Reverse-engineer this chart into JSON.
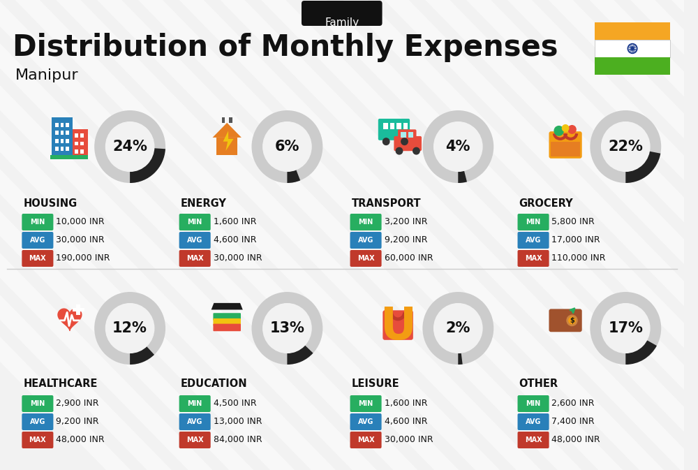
{
  "title": "Distribution of Monthly Expenses",
  "subtitle": "Family",
  "location": "Manipur",
  "background_color": "#f2f2f2",
  "categories": [
    {
      "name": "HOUSING",
      "percent": 24,
      "min": "10,000 INR",
      "avg": "30,000 INR",
      "max": "190,000 INR",
      "row": 0,
      "col": 0
    },
    {
      "name": "ENERGY",
      "percent": 6,
      "min": "1,600 INR",
      "avg": "4,600 INR",
      "max": "30,000 INR",
      "row": 0,
      "col": 1
    },
    {
      "name": "TRANSPORT",
      "percent": 4,
      "min": "3,200 INR",
      "avg": "9,200 INR",
      "max": "60,000 INR",
      "row": 0,
      "col": 2
    },
    {
      "name": "GROCERY",
      "percent": 22,
      "min": "5,800 INR",
      "avg": "17,000 INR",
      "max": "110,000 INR",
      "row": 0,
      "col": 3
    },
    {
      "name": "HEALTHCARE",
      "percent": 12,
      "min": "2,900 INR",
      "avg": "9,200 INR",
      "max": "48,000 INR",
      "row": 1,
      "col": 0
    },
    {
      "name": "EDUCATION",
      "percent": 13,
      "min": "4,500 INR",
      "avg": "13,000 INR",
      "max": "84,000 INR",
      "row": 1,
      "col": 1
    },
    {
      "name": "LEISURE",
      "percent": 2,
      "min": "1,600 INR",
      "avg": "4,600 INR",
      "max": "30,000 INR",
      "row": 1,
      "col": 2
    },
    {
      "name": "OTHER",
      "percent": 17,
      "min": "2,600 INR",
      "avg": "7,400 INR",
      "max": "48,000 INR",
      "row": 1,
      "col": 3
    }
  ],
  "min_color": "#27ae60",
  "avg_color": "#2980b9",
  "max_color": "#c0392b",
  "arc_fg_color": "#222222",
  "arc_bg_color": "#cccccc",
  "text_color": "#111111",
  "india_flag_orange": "#f5a623",
  "india_flag_white": "#ffffff",
  "india_flag_green": "#4caf20",
  "india_chakra_color": "#1a3a8c",
  "pill_color": "#111111",
  "stripe_color": "#e8e8e8"
}
